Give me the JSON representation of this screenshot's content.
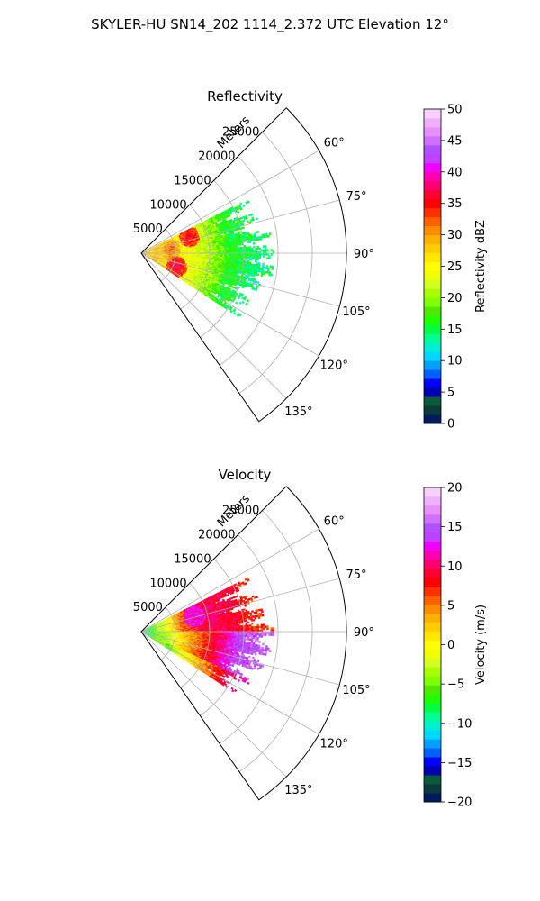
{
  "suptitle": "SKYLER-HU  SN14_202  1114_2.372 UTC Elevation 12°",
  "chart_data": [
    {
      "type": "heatmap",
      "subtype": "polar-sector-ppi",
      "title": "Reflectivity",
      "radial_label": "Meters",
      "r_ticks": [
        5000,
        10000,
        15000,
        20000,
        25000
      ],
      "r_tick_labels": [
        "5000",
        "10000",
        "15000",
        "20000",
        "25000"
      ],
      "rlim": [
        0,
        30000
      ],
      "theta_ticks": [
        60,
        75,
        90,
        105,
        120,
        135
      ],
      "theta_tick_labels": [
        "60°",
        "75°",
        "90°",
        "105°",
        "120°",
        "135°"
      ],
      "thetalim": [
        45,
        145
      ],
      "grid": true,
      "colorbar": {
        "label": "Reflectivity dBZ",
        "range": [
          0,
          50
        ],
        "ticks": [
          0,
          5,
          10,
          15,
          20,
          25,
          30,
          35,
          40,
          45,
          50
        ],
        "tick_labels": [
          "0",
          "5",
          "10",
          "15",
          "20",
          "25",
          "30",
          "35",
          "40",
          "45",
          "50"
        ],
        "colors": [
          "#001a5c",
          "#0a3a3a",
          "#0b5a3a",
          "#0000b0",
          "#0000ff",
          "#0060ff",
          "#00a0ff",
          "#00d8ff",
          "#00f0d0",
          "#00ff90",
          "#00ff40",
          "#20ff00",
          "#50e800",
          "#80ff00",
          "#a8ff00",
          "#d0ff20",
          "#f0ff00",
          "#ffff00",
          "#ffe800",
          "#ffcc00",
          "#ffb000",
          "#ff8c00",
          "#ff6000",
          "#ff3000",
          "#ff0000",
          "#ff0033",
          "#ff0070",
          "#ff00b0",
          "#f000ff",
          "#c040ff",
          "#b050ff",
          "#d070ff",
          "#e890ff",
          "#f0b0ff",
          "#f8d0ff"
        ]
      },
      "field": {
        "r_max": 17000,
        "theta_range": [
          63,
          123
        ],
        "features": [
          {
            "kind": "near_base",
            "value": 28
          },
          {
            "kind": "radial_gradient",
            "values_by_range": [
              [
                0,
                30
              ],
              [
                5000,
                26
              ],
              [
                9000,
                22
              ],
              [
                13000,
                16
              ],
              [
                17000,
                14
              ]
            ]
          },
          {
            "kind": "cell",
            "theta": 71,
            "r": 7300,
            "value": 37
          },
          {
            "kind": "cell",
            "theta": 111,
            "r": 5400,
            "value": 38
          },
          {
            "kind": "cell",
            "theta": 83,
            "r": 4200,
            "value": 33
          }
        ]
      }
    },
    {
      "type": "heatmap",
      "subtype": "polar-sector-ppi",
      "title": "Velocity",
      "radial_label": "Meters",
      "r_ticks": [
        5000,
        10000,
        15000,
        20000,
        25000
      ],
      "r_tick_labels": [
        "5000",
        "10000",
        "15000",
        "20000",
        "25000"
      ],
      "rlim": [
        0,
        30000
      ],
      "theta_ticks": [
        60,
        75,
        90,
        105,
        120,
        135
      ],
      "theta_tick_labels": [
        "60°",
        "75°",
        "90°",
        "105°",
        "120°",
        "135°"
      ],
      "thetalim": [
        45,
        145
      ],
      "grid": true,
      "colorbar": {
        "label": "Velocity (m/s)",
        "range": [
          -20,
          20
        ],
        "ticks": [
          -20,
          -15,
          -10,
          -5,
          0,
          5,
          10,
          15,
          20
        ],
        "tick_labels": [
          "−20",
          "−15",
          "−10",
          "−5",
          "0",
          "5",
          "10",
          "15",
          "20"
        ],
        "colors": [
          "#001a5c",
          "#0a3a3a",
          "#0b5a3a",
          "#0000b0",
          "#0000ff",
          "#0060ff",
          "#00a0ff",
          "#00d8ff",
          "#00f0d0",
          "#00ff90",
          "#00ff40",
          "#20ff00",
          "#50e800",
          "#80ff00",
          "#a8ff00",
          "#d0ff20",
          "#f0ff00",
          "#ffff00",
          "#ffe800",
          "#ffcc00",
          "#ffb000",
          "#ff8c00",
          "#ff6000",
          "#ff3000",
          "#ff0000",
          "#ff0033",
          "#ff0070",
          "#ff00b0",
          "#f000ff",
          "#c040ff",
          "#b050ff",
          "#d070ff",
          "#e890ff",
          "#f0b0ff",
          "#f8d0ff"
        ]
      },
      "field": {
        "r_max": 17000,
        "theta_range": [
          63,
          123
        ],
        "features": [
          {
            "kind": "near_base",
            "value": -10
          },
          {
            "kind": "left_half",
            "values_by_range": [
              [
                3000,
                -3
              ],
              [
                6000,
                6
              ],
              [
                10000,
                10
              ],
              [
                14000,
                9
              ],
              [
                17000,
                7
              ]
            ]
          },
          {
            "kind": "right_half",
            "values_by_range": [
              [
                3000,
                -5
              ],
              [
                6000,
                2
              ],
              [
                10000,
                8
              ],
              [
                14000,
                14
              ],
              [
                17000,
                15
              ]
            ]
          },
          {
            "kind": "cell",
            "theta": 74,
            "r": 8000,
            "value": 12
          }
        ]
      }
    }
  ]
}
